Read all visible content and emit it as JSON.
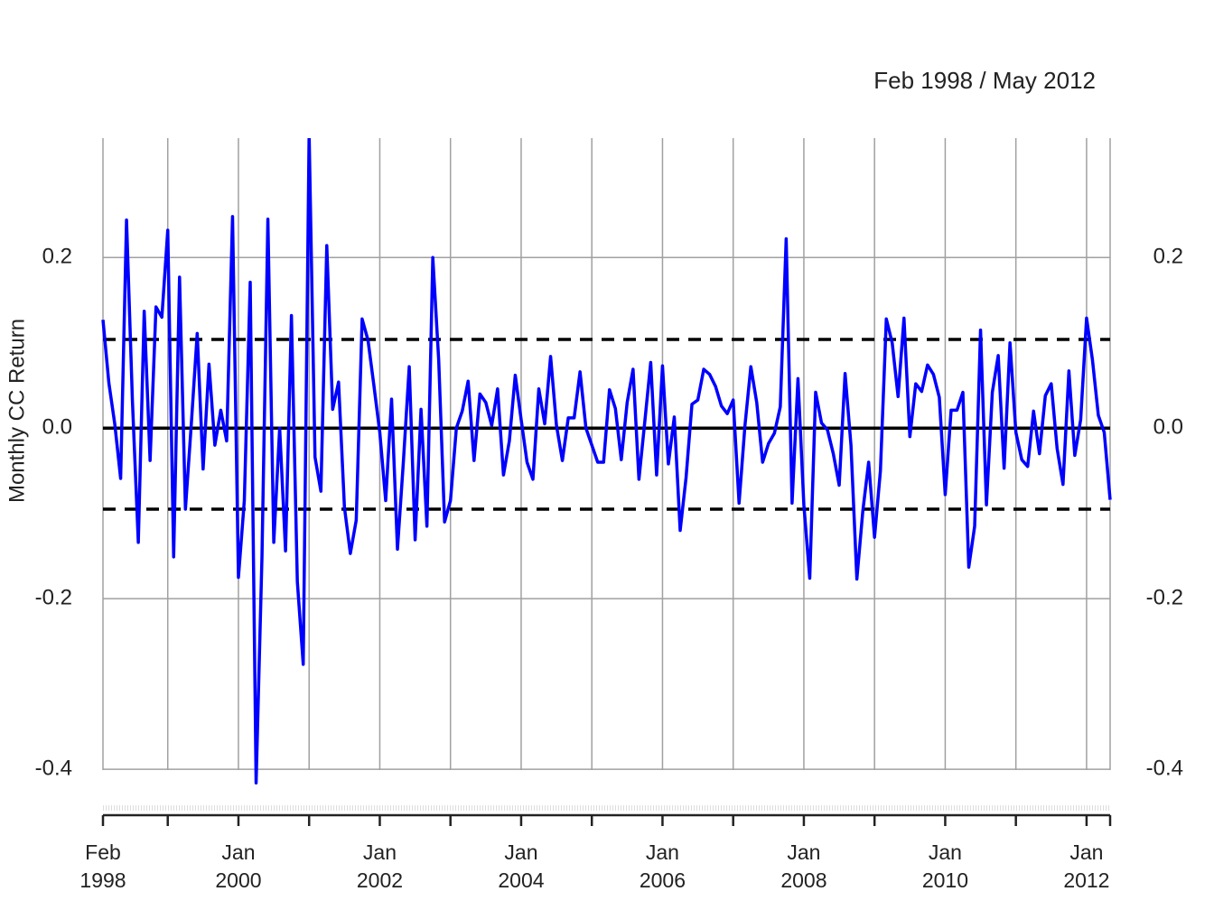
{
  "chart_data": {
    "type": "line",
    "title": "Feb 1998 / May 2012",
    "ylabel": "Monthly CC Return",
    "color": "#0000ff",
    "x": [
      "1998-02",
      "1998-03",
      "1998-04",
      "1998-05",
      "1998-06",
      "1998-07",
      "1998-08",
      "1998-09",
      "1998-10",
      "1998-11",
      "1998-12",
      "1999-01",
      "1999-02",
      "1999-03",
      "1999-04",
      "1999-05",
      "1999-06",
      "1999-07",
      "1999-08",
      "1999-09",
      "1999-10",
      "1999-11",
      "1999-12",
      "2000-01",
      "2000-02",
      "2000-03",
      "2000-04",
      "2000-05",
      "2000-06",
      "2000-07",
      "2000-08",
      "2000-09",
      "2000-10",
      "2000-11",
      "2000-12",
      "2001-01",
      "2001-02",
      "2001-03",
      "2001-04",
      "2001-05",
      "2001-06",
      "2001-07",
      "2001-08",
      "2001-09",
      "2001-10",
      "2001-11",
      "2001-12",
      "2002-01",
      "2002-02",
      "2002-03",
      "2002-04",
      "2002-05",
      "2002-06",
      "2002-07",
      "2002-08",
      "2002-09",
      "2002-10",
      "2002-11",
      "2002-12",
      "2003-01",
      "2003-02",
      "2003-03",
      "2003-04",
      "2003-05",
      "2003-06",
      "2003-07",
      "2003-08",
      "2003-09",
      "2003-10",
      "2003-11",
      "2003-12",
      "2004-01",
      "2004-02",
      "2004-03",
      "2004-04",
      "2004-05",
      "2004-06",
      "2004-07",
      "2004-08",
      "2004-09",
      "2004-10",
      "2004-11",
      "2004-12",
      "2005-01",
      "2005-02",
      "2005-03",
      "2005-04",
      "2005-05",
      "2005-06",
      "2005-07",
      "2005-08",
      "2005-09",
      "2005-10",
      "2005-11",
      "2005-12",
      "2006-01",
      "2006-02",
      "2006-03",
      "2006-04",
      "2006-05",
      "2006-06",
      "2006-07",
      "2006-08",
      "2006-09",
      "2006-10",
      "2006-11",
      "2006-12",
      "2007-01",
      "2007-02",
      "2007-03",
      "2007-04",
      "2007-05",
      "2007-06",
      "2007-07",
      "2007-08",
      "2007-09",
      "2007-10",
      "2007-11",
      "2007-12",
      "2008-01",
      "2008-02",
      "2008-03",
      "2008-04",
      "2008-05",
      "2008-06",
      "2008-07",
      "2008-08",
      "2008-09",
      "2008-10",
      "2008-11",
      "2008-12",
      "2009-01",
      "2009-02",
      "2009-03",
      "2009-04",
      "2009-05",
      "2009-06",
      "2009-07",
      "2009-08",
      "2009-09",
      "2009-10",
      "2009-11",
      "2009-12",
      "2010-01",
      "2010-02",
      "2010-03",
      "2010-04",
      "2010-05",
      "2010-06",
      "2010-07",
      "2010-08",
      "2010-09",
      "2010-10",
      "2010-11",
      "2010-12",
      "2011-01",
      "2011-02",
      "2011-03",
      "2011-04",
      "2011-05",
      "2011-06",
      "2011-07",
      "2011-08",
      "2011-09",
      "2011-10",
      "2011-11",
      "2011-12",
      "2012-01",
      "2012-02",
      "2012-03",
      "2012-04",
      "2012-05"
    ],
    "values": [
      0.127,
      0.053,
      0.005,
      -0.059,
      0.244,
      0.032,
      -0.134,
      0.137,
      -0.038,
      0.142,
      0.13,
      0.232,
      -0.151,
      0.177,
      -0.095,
      0.005,
      0.111,
      -0.048,
      0.075,
      -0.02,
      0.021,
      -0.015,
      0.248,
      -0.175,
      -0.085,
      0.171,
      -0.416,
      -0.15,
      0.245,
      -0.134,
      0.0,
      -0.144,
      0.132,
      -0.18,
      -0.277,
      0.345,
      -0.034,
      -0.074,
      0.214,
      0.022,
      0.054,
      -0.093,
      -0.147,
      -0.108,
      0.128,
      0.103,
      0.05,
      -0.005,
      -0.085,
      0.034,
      -0.142,
      -0.04,
      0.072,
      -0.131,
      0.022,
      -0.115,
      0.2,
      0.08,
      -0.11,
      -0.085,
      0.0,
      0.02,
      0.055,
      -0.038,
      0.04,
      0.03,
      0.003,
      0.046,
      -0.055,
      -0.015,
      0.062,
      0.01,
      -0.04,
      -0.06,
      0.046,
      0.005,
      0.084,
      0.003,
      -0.038,
      0.012,
      0.012,
      0.066,
      0.0,
      -0.02,
      -0.04,
      -0.04,
      0.045,
      0.023,
      -0.037,
      0.03,
      0.069,
      -0.06,
      0.008,
      0.077,
      -0.055,
      0.073,
      -0.042,
      0.013,
      -0.12,
      -0.058,
      0.028,
      0.033,
      0.069,
      0.063,
      0.049,
      0.026,
      0.017,
      0.033,
      -0.088,
      0.003,
      0.072,
      0.03,
      -0.04,
      -0.018,
      -0.006,
      0.025,
      0.222,
      -0.088,
      0.058,
      -0.09,
      -0.176,
      0.042,
      0.006,
      -0.002,
      -0.03,
      -0.067,
      0.064,
      -0.02,
      -0.177,
      -0.098,
      -0.04,
      -0.128,
      -0.05,
      0.128,
      0.1,
      0.037,
      0.129,
      -0.01,
      0.052,
      0.043,
      0.074,
      0.063,
      0.036,
      -0.078,
      0.021,
      0.021,
      0.042,
      -0.163,
      -0.115,
      0.115,
      -0.09,
      0.042,
      0.085,
      -0.047,
      0.1,
      -0.005,
      -0.037,
      -0.045,
      0.02,
      -0.03,
      0.038,
      0.052,
      -0.024,
      -0.066,
      0.067,
      -0.032,
      0.01,
      0.129,
      0.08,
      0.015,
      -0.005,
      -0.084
    ],
    "xlim": [
      "1998-02",
      "2012-05"
    ],
    "xticks": [
      {
        "value": "1998-02",
        "label": "Feb\n1998"
      },
      {
        "value": "1999-01",
        "label": null
      },
      {
        "value": "2000-01",
        "label": "Jan\n2000"
      },
      {
        "value": "2001-01",
        "label": null
      },
      {
        "value": "2002-01",
        "label": "Jan\n2002"
      },
      {
        "value": "2003-01",
        "label": null
      },
      {
        "value": "2004-01",
        "label": "Jan\n2004"
      },
      {
        "value": "2005-01",
        "label": null
      },
      {
        "value": "2006-01",
        "label": "Jan\n2006"
      },
      {
        "value": "2007-01",
        "label": null
      },
      {
        "value": "2008-01",
        "label": "Jan\n2008"
      },
      {
        "value": "2009-01",
        "label": null
      },
      {
        "value": "2010-01",
        "label": "Jan\n2010"
      },
      {
        "value": "2011-01",
        "label": null
      },
      {
        "value": "2012-01",
        "label": "Jan\n2012"
      }
    ],
    "ylim": [
      -0.42,
      0.34
    ],
    "yticks": [
      -0.4,
      -0.2,
      {
        "value": 0,
        "label": "0.0"
      },
      0.2
    ],
    "hlines": [
      {
        "value": 0,
        "style": "solid"
      },
      {
        "value": 0.104,
        "style": "dashed"
      },
      {
        "value": -0.095,
        "style": "dashed"
      }
    ],
    "grid": true
  }
}
